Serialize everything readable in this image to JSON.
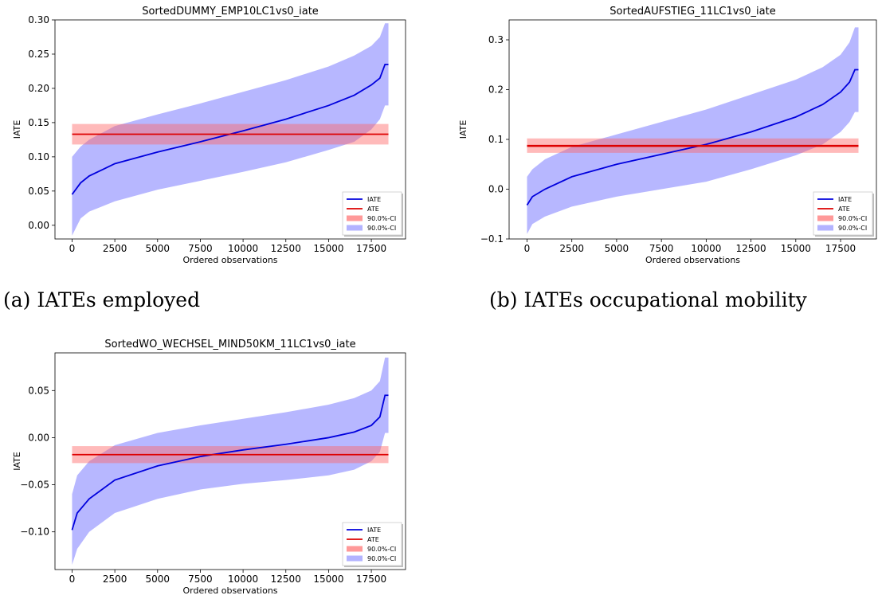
{
  "captions": {
    "a": "(a) IATEs employed",
    "b": "(b) IATEs occupational mobility"
  },
  "colors": {
    "iate_line": "#0000dd",
    "ate_line": "#dd0000",
    "ate_ci": "#ffb3b3",
    "iate_ci": "#b3b3ff"
  },
  "chart_data": [
    {
      "type": "line",
      "title": "SortedDUMMY_EMP10LC1vs0_iate",
      "xlabel": "Ordered observations",
      "ylabel": "IATE",
      "xlim": [
        -1000,
        19500
      ],
      "ylim": [
        -0.02,
        0.3
      ],
      "xticks": [
        0,
        2500,
        5000,
        7500,
        10000,
        12500,
        15000,
        17500
      ],
      "xtick_labels": [
        "0",
        "2500",
        "5000",
        "7500",
        "10000",
        "12500",
        "15000",
        "17500"
      ],
      "yticks": [
        0.0,
        0.05,
        0.1,
        0.15,
        0.2,
        0.25,
        0.3
      ],
      "ytick_labels": [
        "0.00",
        "0.05",
        "0.10",
        "0.15",
        "0.20",
        "0.25",
        "0.30"
      ],
      "legend": {
        "placement": "lower-right",
        "entries": [
          "IATE",
          "ATE",
          "90.0%-CI",
          "90.0%-CI"
        ]
      },
      "grid": false,
      "x_max": 18500,
      "iate": {
        "x": [
          0,
          500,
          1000,
          2500,
          5000,
          7500,
          10000,
          12500,
          15000,
          16500,
          17500,
          18000,
          18300,
          18500
        ],
        "y": [
          0.045,
          0.062,
          0.072,
          0.09,
          0.107,
          0.122,
          0.138,
          0.155,
          0.175,
          0.19,
          0.205,
          0.215,
          0.235,
          0.235
        ]
      },
      "iate_ci": {
        "x": [
          0,
          500,
          1000,
          2500,
          5000,
          7500,
          10000,
          12500,
          15000,
          16500,
          17500,
          18000,
          18300,
          18500
        ],
        "lower": [
          -0.015,
          0.01,
          0.02,
          0.035,
          0.052,
          0.065,
          0.078,
          0.092,
          0.11,
          0.122,
          0.14,
          0.155,
          0.175,
          0.175
        ],
        "upper": [
          0.1,
          0.115,
          0.125,
          0.145,
          0.162,
          0.178,
          0.195,
          0.212,
          0.232,
          0.248,
          0.262,
          0.275,
          0.295,
          0.295
        ]
      },
      "ate": {
        "value": 0.133,
        "ci_lower": 0.118,
        "ci_upper": 0.148
      }
    },
    {
      "type": "line",
      "title": "SortedAUFSTIEG_11LC1vs0_iate",
      "xlabel": "Ordered observations",
      "ylabel": "IATE",
      "xlim": [
        -1000,
        19500
      ],
      "ylim": [
        -0.1,
        0.34
      ],
      "xticks": [
        0,
        2500,
        5000,
        7500,
        10000,
        12500,
        15000,
        17500
      ],
      "xtick_labels": [
        "0",
        "2500",
        "5000",
        "7500",
        "10000",
        "12500",
        "15000",
        "17500"
      ],
      "yticks": [
        -0.1,
        0.0,
        0.1,
        0.2,
        0.3
      ],
      "ytick_labels": [
        "−0.1",
        "0.0",
        "0.1",
        "0.2",
        "0.3"
      ],
      "legend": {
        "placement": "lower-right",
        "entries": [
          "IATE",
          "ATE",
          "90.0%-CI",
          "90.0%-CI"
        ]
      },
      "grid": false,
      "x_max": 18500,
      "iate": {
        "x": [
          0,
          300,
          1000,
          2500,
          5000,
          7500,
          10000,
          12500,
          15000,
          16500,
          17500,
          18000,
          18300,
          18500
        ],
        "y": [
          -0.032,
          -0.015,
          0.0,
          0.025,
          0.05,
          0.07,
          0.09,
          0.115,
          0.145,
          0.17,
          0.195,
          0.215,
          0.24,
          0.24
        ]
      },
      "iate_ci": {
        "x": [
          0,
          300,
          1000,
          2500,
          5000,
          7500,
          10000,
          12500,
          15000,
          16500,
          17500,
          18000,
          18300,
          18500
        ],
        "lower": [
          -0.09,
          -0.07,
          -0.055,
          -0.035,
          -0.015,
          0.0,
          0.015,
          0.04,
          0.068,
          0.09,
          0.115,
          0.135,
          0.155,
          0.155
        ],
        "upper": [
          0.025,
          0.04,
          0.06,
          0.085,
          0.11,
          0.135,
          0.16,
          0.19,
          0.22,
          0.245,
          0.27,
          0.295,
          0.325,
          0.325
        ]
      },
      "ate": {
        "value": 0.087,
        "ci_lower": 0.073,
        "ci_upper": 0.102
      }
    },
    {
      "type": "line",
      "title": "SortedWO_WECHSEL_MIND50KM_11LC1vs0_iate",
      "xlabel": "Ordered observations",
      "ylabel": "IATE",
      "xlim": [
        -1000,
        19500
      ],
      "ylim": [
        -0.14,
        0.09
      ],
      "xticks": [
        0,
        2500,
        5000,
        7500,
        10000,
        12500,
        15000,
        17500
      ],
      "xtick_labels": [
        "0",
        "2500",
        "5000",
        "7500",
        "10000",
        "12500",
        "15000",
        "17500"
      ],
      "yticks": [
        -0.1,
        -0.05,
        0.0,
        0.05
      ],
      "ytick_labels": [
        "−0.10",
        "−0.05",
        "0.00",
        "0.05"
      ],
      "legend": {
        "placement": "lower-right",
        "entries": [
          "IATE",
          "ATE",
          "90.0%-CI",
          "90.0%-CI"
        ]
      },
      "grid": false,
      "x_max": 18500,
      "iate": {
        "x": [
          0,
          300,
          1000,
          2500,
          5000,
          7500,
          10000,
          12500,
          15000,
          16500,
          17500,
          18000,
          18300,
          18500
        ],
        "y": [
          -0.098,
          -0.08,
          -0.065,
          -0.045,
          -0.03,
          -0.02,
          -0.013,
          -0.007,
          0.0,
          0.006,
          0.013,
          0.022,
          0.045,
          0.045
        ]
      },
      "iate_ci": {
        "x": [
          0,
          300,
          1000,
          2500,
          5000,
          7500,
          10000,
          12500,
          15000,
          16500,
          17500,
          18000,
          18300,
          18500
        ],
        "lower": [
          -0.135,
          -0.118,
          -0.1,
          -0.08,
          -0.065,
          -0.055,
          -0.049,
          -0.045,
          -0.04,
          -0.034,
          -0.025,
          -0.015,
          0.005,
          0.005
        ],
        "upper": [
          -0.06,
          -0.04,
          -0.025,
          -0.008,
          0.005,
          0.013,
          0.02,
          0.027,
          0.035,
          0.042,
          0.05,
          0.06,
          0.085,
          0.085
        ]
      },
      "ate": {
        "value": -0.018,
        "ci_lower": -0.027,
        "ci_upper": -0.009
      }
    }
  ]
}
